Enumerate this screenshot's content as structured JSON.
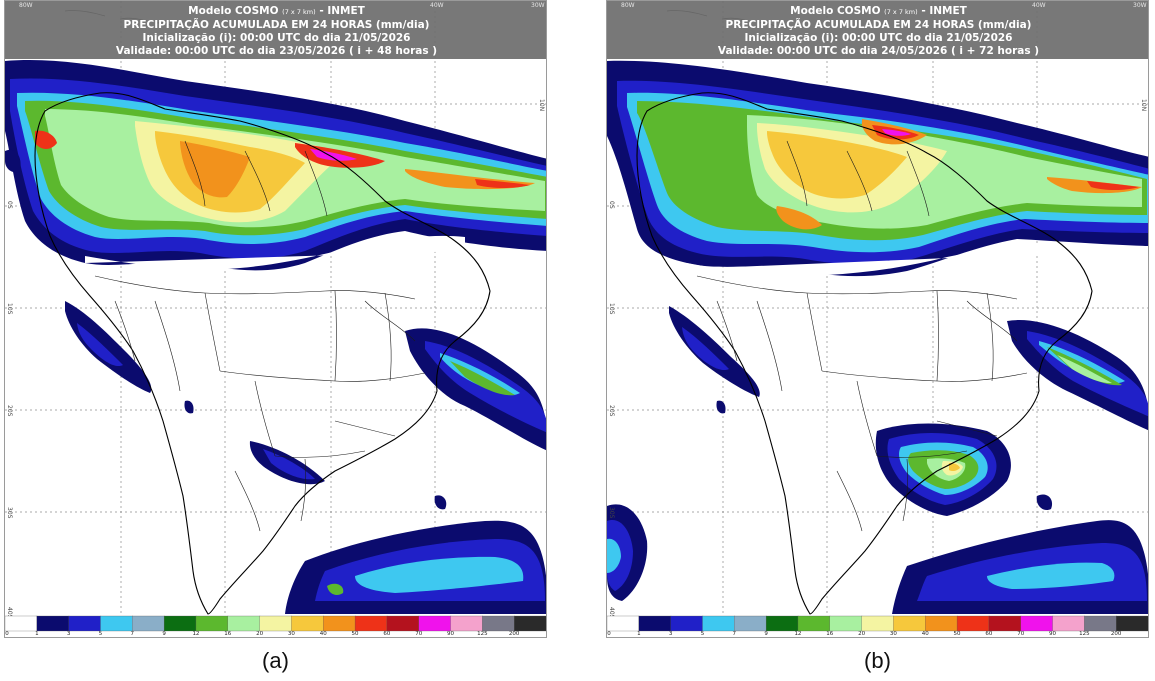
{
  "panels": [
    {
      "id": "a",
      "header": {
        "line1_main": "Modelo COSMO",
        "line1_small": "(7 x 7 km)",
        "line1_tail": "- INMET",
        "line2": "PRECIPITAÇÃO ACUMULADA EM 24 HORAS (mm/dia)",
        "line3": "Inicialização (i): 00:00 UTC do dia 21/05/2026",
        "line4": "Validade: 00:00 UTC do dia 23/05/2026 ( i + 48 horas )"
      },
      "caption": "(a)"
    },
    {
      "id": "b",
      "header": {
        "line1_main": "Modelo COSMO",
        "line1_small": "(7 x 7 km)",
        "line1_tail": "- INMET",
        "line2": "PRECIPITAÇÃO ACUMULADA EM 24 HORAS (mm/dia)",
        "line3": "Inicialização (i): 00:00 UTC do dia 21/05/2026",
        "line4": "Validade: 00:00 UTC do dia 24/05/2026 ( i + 72 horas )"
      },
      "caption": "(b)"
    }
  ],
  "grid_labels": {
    "lon_left": "80W",
    "lon_mid": "40W",
    "lon_right": "30W",
    "lat": [
      "10N",
      "0S",
      "10S",
      "20S",
      "30S",
      "40S"
    ]
  },
  "colorbar": {
    "ticks": [
      "0",
      "1",
      "3",
      "5",
      "7",
      "9",
      "12",
      "16",
      "20",
      "30",
      "40",
      "50",
      "60",
      "70",
      "90",
      "125",
      "200"
    ],
    "colors": [
      "#ffffff",
      "#0b0b6e",
      "#2020c8",
      "#3ec8f0",
      "#8aaec8",
      "#0c6e12",
      "#5cb82e",
      "#a8f0a0",
      "#f4f4a2",
      "#f6c83c",
      "#f2921c",
      "#ee3218",
      "#b4121e",
      "#f012ec",
      "#f4a2cc",
      "#787888",
      "#2a2a2a"
    ]
  },
  "colors": {
    "land_outline": "#000000",
    "ocean": "#ffffff",
    "header_bg": "#6e6e6e"
  }
}
